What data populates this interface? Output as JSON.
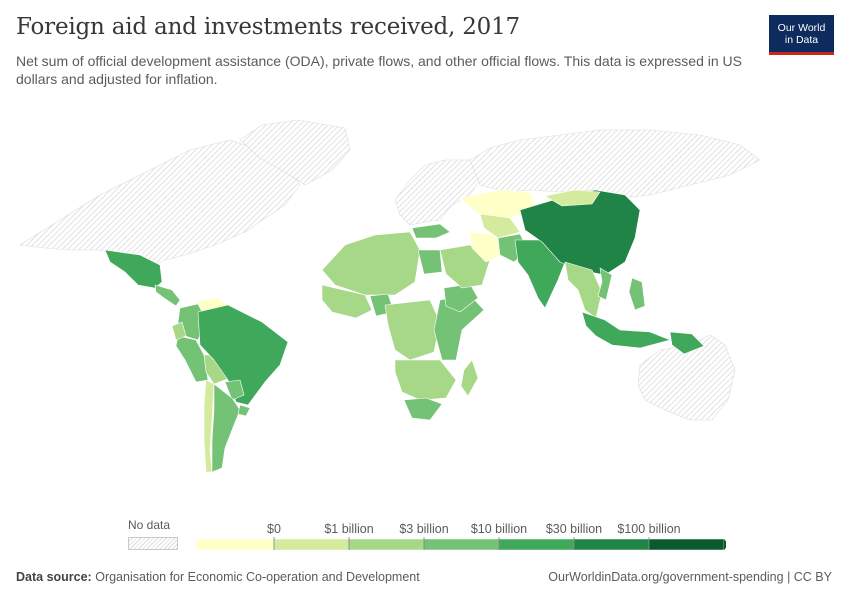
{
  "header": {
    "title": "Foreign aid and investments received, 2017",
    "subtitle": "Net sum of official development assistance (ODA), private flows, and other official flows. This data is expressed in US dollars and adjusted for inflation.",
    "logo_line1": "Our World",
    "logo_line2": "in Data"
  },
  "colors": {
    "no_data": "#e4e4e4",
    "scale": [
      "#ffffc8",
      "#d4ea9c",
      "#a6d887",
      "#73c275",
      "#3fa85a",
      "#1f8445",
      "#0a5a2e"
    ]
  },
  "chart_data": {
    "type": "choropleth",
    "title": "Foreign aid and investments received, 2017",
    "legend": {
      "no_data_label": "No data",
      "bins": [
        {
          "label": "",
          "color": "#ffffc8"
        },
        {
          "label": "$0",
          "color": "#d4ea9c"
        },
        {
          "label": "$1 billion",
          "color": "#a6d887"
        },
        {
          "label": "$3 billion",
          "color": "#73c275"
        },
        {
          "label": "$10 billion",
          "color": "#3fa85a"
        },
        {
          "label": "$30 billion",
          "color": "#1f8445"
        },
        {
          "label": "$100 billion",
          "color": "#0a5a2e"
        }
      ]
    },
    "regions": [
      {
        "name": "North America",
        "bin": "no data"
      },
      {
        "name": "Greenland",
        "bin": "no data"
      },
      {
        "name": "Europe",
        "bin": "no data"
      },
      {
        "name": "Russia",
        "bin": "no data"
      },
      {
        "name": "Australia",
        "bin": "no data"
      },
      {
        "name": "Mexico",
        "bin": 4
      },
      {
        "name": "Central America",
        "bin": 3
      },
      {
        "name": "Venezuela",
        "bin": 0
      },
      {
        "name": "Colombia",
        "bin": 3
      },
      {
        "name": "Peru",
        "bin": 3
      },
      {
        "name": "Ecuador",
        "bin": 2
      },
      {
        "name": "Bolivia",
        "bin": 2
      },
      {
        "name": "Brazil",
        "bin": 4
      },
      {
        "name": "Paraguay",
        "bin": 3
      },
      {
        "name": "Chile",
        "bin": 1
      },
      {
        "name": "Argentina",
        "bin": 3
      },
      {
        "name": "Uruguay",
        "bin": 3
      },
      {
        "name": "North Africa",
        "bin": 2
      },
      {
        "name": "Egypt",
        "bin": 3
      },
      {
        "name": "West Africa",
        "bin": 2
      },
      {
        "name": "Nigeria",
        "bin": 3
      },
      {
        "name": "Central Africa",
        "bin": 2
      },
      {
        "name": "East Africa",
        "bin": 3
      },
      {
        "name": "Ethiopia",
        "bin": 3
      },
      {
        "name": "Southern Africa",
        "bin": 2
      },
      {
        "name": "South Africa",
        "bin": 3
      },
      {
        "name": "Madagascar",
        "bin": 2
      },
      {
        "name": "Saudi Arabia",
        "bin": 2
      },
      {
        "name": "Turkey",
        "bin": 3
      },
      {
        "name": "Iran",
        "bin": 0
      },
      {
        "name": "Kazakhstan",
        "bin": 0
      },
      {
        "name": "Central Asia",
        "bin": 1
      },
      {
        "name": "Pakistan",
        "bin": 3
      },
      {
        "name": "India",
        "bin": 4
      },
      {
        "name": "China",
        "bin": 5
      },
      {
        "name": "Mongolia",
        "bin": 1
      },
      {
        "name": "Southeast Asia",
        "bin": 2
      },
      {
        "name": "Vietnam",
        "bin": 3
      },
      {
        "name": "Philippines",
        "bin": 3
      },
      {
        "name": "Indonesia",
        "bin": 4
      },
      {
        "name": "Papua New Guinea",
        "bin": 4
      }
    ]
  },
  "footer": {
    "source_label": "Data source:",
    "source_text": "Organisation for Economic Co-operation and Development",
    "url": "OurWorldinData.org/government-spending | CC BY"
  }
}
